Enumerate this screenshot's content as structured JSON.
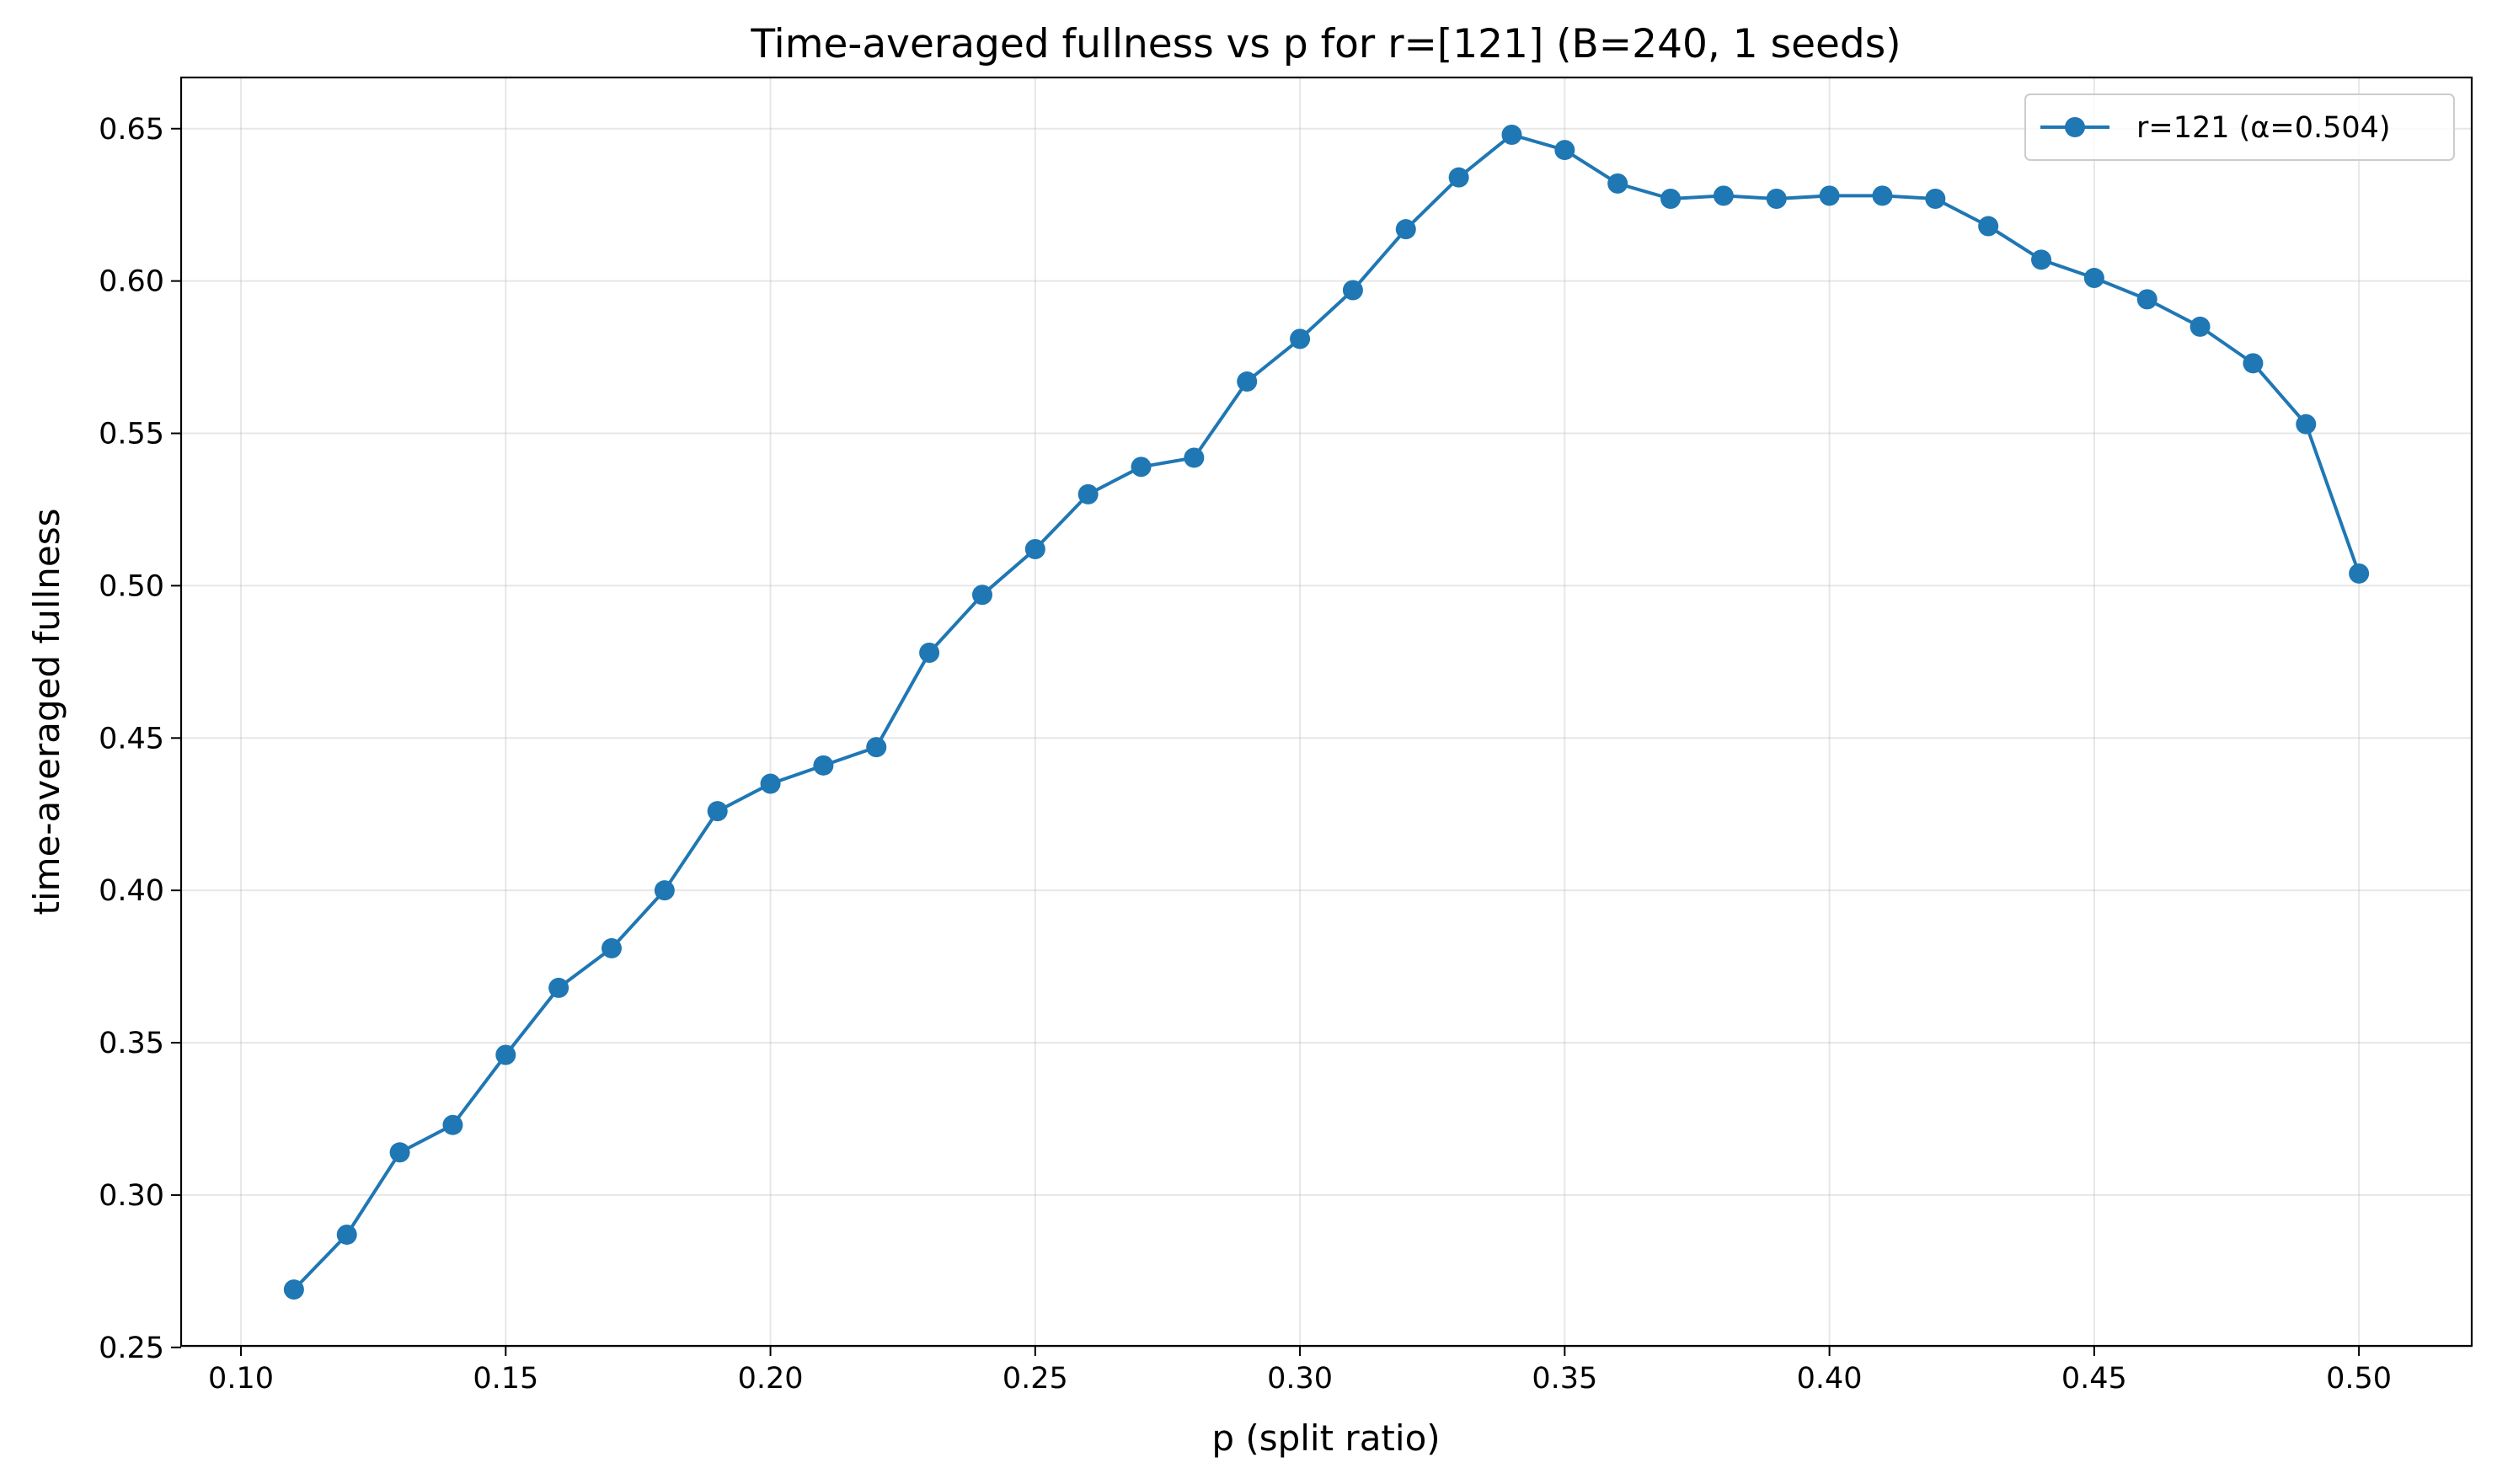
{
  "chart_data": {
    "type": "line",
    "title": "Time-averaged fullness vs p for r=[121] (B=240, 1 seeds)",
    "xlabel": "p (split ratio)",
    "ylabel": "time-averaged fullness",
    "xlim": [
      0.0887,
      0.5213
    ],
    "ylim": [
      0.2505,
      0.6668
    ],
    "x_ticks": [
      0.1,
      0.15,
      0.2,
      0.25,
      0.3,
      0.35,
      0.4,
      0.45,
      0.5
    ],
    "x_tick_labels": [
      "0.10",
      "0.15",
      "0.20",
      "0.25",
      "0.30",
      "0.35",
      "0.40",
      "0.45",
      "0.50"
    ],
    "y_ticks": [
      0.25,
      0.3,
      0.35,
      0.4,
      0.45,
      0.5,
      0.55,
      0.6,
      0.65
    ],
    "y_tick_labels": [
      "0.25",
      "0.30",
      "0.35",
      "0.40",
      "0.45",
      "0.50",
      "0.55",
      "0.60",
      "0.65"
    ],
    "grid": true,
    "legend_position": "top-right",
    "series": [
      {
        "name": "r=121 (α=0.504)",
        "color": "#1f77b4",
        "marker": "circle",
        "x": [
          0.11,
          0.12,
          0.13,
          0.14,
          0.15,
          0.16,
          0.17,
          0.18,
          0.19,
          0.2,
          0.21,
          0.22,
          0.23,
          0.24,
          0.25,
          0.26,
          0.27,
          0.28,
          0.29,
          0.3,
          0.31,
          0.32,
          0.33,
          0.34,
          0.35,
          0.36,
          0.37,
          0.38,
          0.39,
          0.4,
          0.41,
          0.42,
          0.43,
          0.44,
          0.45,
          0.46,
          0.47,
          0.48,
          0.49,
          0.5
        ],
        "y": [
          0.269,
          0.287,
          0.314,
          0.323,
          0.346,
          0.368,
          0.381,
          0.4,
          0.426,
          0.435,
          0.441,
          0.447,
          0.478,
          0.497,
          0.512,
          0.53,
          0.539,
          0.542,
          0.567,
          0.581,
          0.597,
          0.617,
          0.634,
          0.648,
          0.643,
          0.632,
          0.627,
          0.628,
          0.627,
          0.628,
          0.628,
          0.627,
          0.618,
          0.607,
          0.601,
          0.594,
          0.585,
          0.573,
          0.553,
          0.504
        ]
      }
    ]
  }
}
